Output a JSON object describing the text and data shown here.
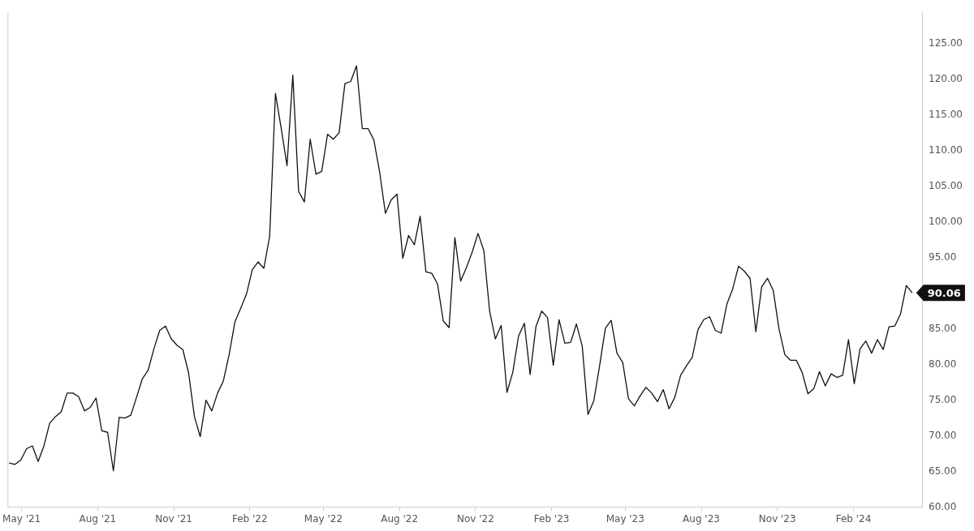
{
  "chart_data": {
    "type": "line",
    "x": [
      "2021-04-16",
      "2021-04-23",
      "2021-04-30",
      "2021-05-07",
      "2021-05-14",
      "2021-05-21",
      "2021-05-28",
      "2021-06-04",
      "2021-06-11",
      "2021-06-18",
      "2021-06-25",
      "2021-07-02",
      "2021-07-09",
      "2021-07-16",
      "2021-07-23",
      "2021-07-30",
      "2021-08-06",
      "2021-08-13",
      "2021-08-20",
      "2021-08-27",
      "2021-09-03",
      "2021-09-10",
      "2021-09-17",
      "2021-09-24",
      "2021-10-01",
      "2021-10-08",
      "2021-10-15",
      "2021-10-22",
      "2021-10-29",
      "2021-11-05",
      "2021-11-12",
      "2021-11-19",
      "2021-11-26",
      "2021-12-03",
      "2021-12-10",
      "2021-12-17",
      "2021-12-24",
      "2021-12-31",
      "2022-01-07",
      "2022-01-14",
      "2022-01-21",
      "2022-01-28",
      "2022-02-04",
      "2022-02-11",
      "2022-02-18",
      "2022-02-25",
      "2022-03-04",
      "2022-03-11",
      "2022-03-18",
      "2022-03-25",
      "2022-04-01",
      "2022-04-08",
      "2022-04-15",
      "2022-04-22",
      "2022-04-29",
      "2022-05-06",
      "2022-05-13",
      "2022-05-20",
      "2022-05-27",
      "2022-06-03",
      "2022-06-10",
      "2022-06-17",
      "2022-06-24",
      "2022-07-01",
      "2022-07-08",
      "2022-07-15",
      "2022-07-22",
      "2022-07-29",
      "2022-08-05",
      "2022-08-12",
      "2022-08-19",
      "2022-08-26",
      "2022-09-02",
      "2022-09-09",
      "2022-09-16",
      "2022-09-23",
      "2022-09-30",
      "2022-10-07",
      "2022-10-14",
      "2022-10-21",
      "2022-10-28",
      "2022-11-04",
      "2022-11-11",
      "2022-11-18",
      "2022-11-25",
      "2022-12-02",
      "2022-12-09",
      "2022-12-16",
      "2022-12-23",
      "2022-12-30",
      "2023-01-06",
      "2023-01-13",
      "2023-01-20",
      "2023-01-27",
      "2023-02-03",
      "2023-02-10",
      "2023-02-17",
      "2023-02-24",
      "2023-03-03",
      "2023-03-10",
      "2023-03-17",
      "2023-03-24",
      "2023-03-31",
      "2023-04-07",
      "2023-04-14",
      "2023-04-21",
      "2023-04-28",
      "2023-05-05",
      "2023-05-12",
      "2023-05-19",
      "2023-05-26",
      "2023-06-02",
      "2023-06-09",
      "2023-06-16",
      "2023-06-23",
      "2023-06-30",
      "2023-07-07",
      "2023-07-14",
      "2023-07-21",
      "2023-07-28",
      "2023-08-04",
      "2023-08-11",
      "2023-08-18",
      "2023-08-25",
      "2023-09-01",
      "2023-09-08",
      "2023-09-15",
      "2023-09-22",
      "2023-09-29",
      "2023-10-06",
      "2023-10-13",
      "2023-10-20",
      "2023-10-27",
      "2023-11-03",
      "2023-11-10",
      "2023-11-17",
      "2023-11-24",
      "2023-12-01",
      "2023-12-08",
      "2023-12-15",
      "2023-12-22",
      "2023-12-29",
      "2024-01-05",
      "2024-01-12",
      "2024-01-19",
      "2024-01-26",
      "2024-02-02",
      "2024-02-09",
      "2024-02-16",
      "2024-02-23",
      "2024-03-01",
      "2024-03-08",
      "2024-03-15",
      "2024-03-22",
      "2024-03-29",
      "2024-04-05",
      "2024-04-12"
    ],
    "series": [
      {
        "color": "#111111",
        "values": [
          66.2,
          66.0,
          66.6,
          68.2,
          68.6,
          66.4,
          68.6,
          71.8,
          72.7,
          73.4,
          76.0,
          76.0,
          75.5,
          73.5,
          74.0,
          75.3,
          70.7,
          70.5,
          65.1,
          72.6,
          72.5,
          72.9,
          75.4,
          78.0,
          79.2,
          82.2,
          84.8,
          85.4,
          83.6,
          82.7,
          82.1,
          78.8,
          72.7,
          69.9,
          75.0,
          73.5,
          76.0,
          77.7,
          81.4,
          86.0,
          87.9,
          89.9,
          93.3,
          94.4,
          93.5,
          98.0,
          118.0,
          113.1,
          107.9,
          120.6,
          104.3,
          102.8,
          111.6,
          106.7,
          107.1,
          112.3,
          111.6,
          112.5,
          119.4,
          119.7,
          121.9,
          113.1,
          113.1,
          111.5,
          107.0,
          101.2,
          103.1,
          103.9,
          94.9,
          98.1,
          96.8,
          100.8,
          93.0,
          92.8,
          91.3,
          86.1,
          85.2,
          97.8,
          91.7,
          93.6,
          95.8,
          98.4,
          96.0,
          87.5,
          83.6,
          85.5,
          76.1,
          78.9,
          84.0,
          85.8,
          78.6,
          85.3,
          87.5,
          86.6,
          79.9,
          86.3,
          83.0,
          83.1,
          85.7,
          82.6,
          73.0,
          74.9,
          79.8,
          85.1,
          86.2,
          81.6,
          80.3,
          75.2,
          74.2,
          75.6,
          76.8,
          76.0,
          74.8,
          76.5,
          73.8,
          75.4,
          78.5,
          79.8,
          81.0,
          84.9,
          86.3,
          86.7,
          84.8,
          84.4,
          88.5,
          90.6,
          93.8,
          93.1,
          92.1,
          84.6,
          90.9,
          92.1,
          90.4,
          85.0,
          81.4,
          80.6,
          80.6,
          78.9,
          75.9,
          76.6,
          79.0,
          77.0,
          78.7,
          78.2,
          78.5,
          83.5,
          77.3,
          82.2,
          83.3,
          81.6,
          83.5,
          82.1,
          85.3,
          85.4,
          87.1,
          91.1,
          90.06
        ],
        "value_labels": [
          null,
          null,
          null,
          null,
          null,
          null,
          null,
          null,
          null,
          null,
          null,
          null,
          null,
          null,
          null,
          null,
          null,
          null,
          null,
          null,
          null,
          null,
          null,
          null,
          null,
          null,
          null,
          null,
          null,
          null,
          null,
          null,
          null,
          null,
          null,
          null,
          null,
          null,
          null,
          null,
          null,
          null,
          null,
          null,
          null,
          null,
          null,
          null,
          null,
          null,
          null,
          null,
          null,
          null,
          null,
          null,
          null,
          null,
          null,
          null,
          null,
          null,
          null,
          null,
          null,
          null,
          null,
          null,
          null,
          null,
          null,
          null,
          null,
          null,
          null,
          null,
          null,
          null,
          null,
          null,
          null,
          null,
          null,
          null,
          null,
          null,
          null,
          null,
          null,
          null,
          null,
          null,
          null,
          null,
          null,
          null,
          null,
          null,
          null,
          null,
          null,
          null,
          null,
          null,
          null,
          null,
          null,
          null,
          null,
          null,
          null,
          null,
          null,
          null,
          null,
          null,
          null,
          null,
          null,
          null,
          null,
          null,
          null,
          null,
          null,
          null,
          null,
          null,
          null,
          null,
          null,
          null,
          null,
          null,
          null,
          null,
          null,
          null,
          null,
          null,
          null,
          null,
          null,
          null,
          null,
          null,
          null,
          null,
          null,
          null,
          null,
          null,
          null,
          null,
          null,
          null,
          "90.06"
        ]
      }
    ],
    "xlim": [
      "2021-04-14",
      "2024-04-24"
    ],
    "xticks": [
      {
        "value": "2021-05-01",
        "label": "May '21"
      },
      {
        "value": "2021-08-01",
        "label": "Aug '21"
      },
      {
        "value": "2021-11-01",
        "label": "Nov '21"
      },
      {
        "value": "2022-02-01",
        "label": "Feb '22"
      },
      {
        "value": "2022-05-01",
        "label": "May '22"
      },
      {
        "value": "2022-08-01",
        "label": "Aug '22"
      },
      {
        "value": "2022-11-01",
        "label": "Nov '22"
      },
      {
        "value": "2023-02-01",
        "label": "Feb '23"
      },
      {
        "value": "2023-05-01",
        "label": "May '23"
      },
      {
        "value": "2023-08-01",
        "label": "Aug '23"
      },
      {
        "value": "2023-11-01",
        "label": "Nov '23"
      },
      {
        "value": "2024-02-01",
        "label": "Feb '24"
      }
    ],
    "ylim": [
      60,
      129.4
    ],
    "yticks": [
      {
        "value": 60,
        "label": "60.00"
      },
      {
        "value": 65,
        "label": "65.00"
      },
      {
        "value": 70,
        "label": "70.00"
      },
      {
        "value": 75,
        "label": "75.00"
      },
      {
        "value": 80,
        "label": "80.00"
      },
      {
        "value": 85,
        "label": "85.00"
      },
      {
        "value": 95,
        "label": "95.00"
      },
      {
        "value": 100,
        "label": "100.00"
      },
      {
        "value": 105,
        "label": "105.00"
      },
      {
        "value": 110,
        "label": "110.00"
      },
      {
        "value": 115,
        "label": "115.00"
      },
      {
        "value": 120,
        "label": "120.00"
      },
      {
        "value": 125,
        "label": "125.00"
      }
    ],
    "grid": false,
    "legend": false,
    "marker": "none",
    "line_style": "solid"
  }
}
